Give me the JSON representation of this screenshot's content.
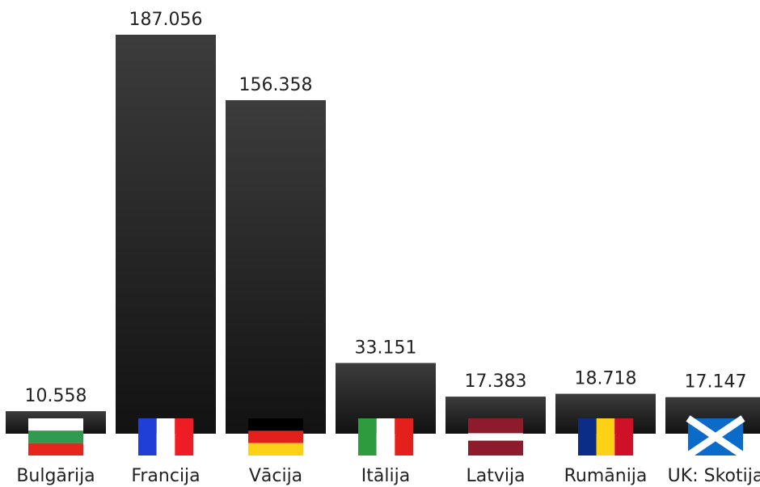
{
  "chart_data": {
    "type": "bar",
    "categories": [
      "Bulgārija",
      "Francija",
      "Vācija",
      "Itālija",
      "Latvija",
      "Rumānija",
      "UK: Skotija"
    ],
    "values": [
      10.558,
      187.056,
      156.358,
      33.151,
      17.383,
      18.718,
      17.147
    ],
    "value_labels": [
      "10.558",
      "187.056",
      "156.358",
      "33.151",
      "17.383",
      "18.718",
      "17.147"
    ],
    "flags": [
      "bulgaria-flag",
      "france-flag",
      "germany-flag",
      "italy-flag",
      "latvia-flag",
      "romania-flag",
      "scotland-flag"
    ],
    "title": "",
    "xlabel": "",
    "ylabel": "",
    "ylim": [
      0,
      187.056
    ],
    "grid": false,
    "legend": "none",
    "bar_color_top": "#3c3c3c",
    "bar_color_bottom": "#121212"
  }
}
